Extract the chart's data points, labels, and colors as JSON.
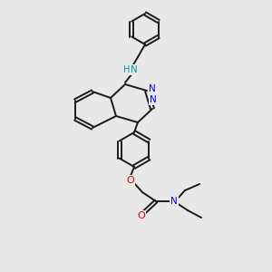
{
  "bg_color": "#e8e8e8",
  "bond_color": "#1a1a1a",
  "n_color": "#0000ee",
  "o_color": "#dd0000",
  "nh_color": "#009999",
  "lw": 1.4,
  "figsize": [
    3.0,
    3.0
  ],
  "dpi": 100,
  "xlim": [
    0,
    300
  ],
  "ylim": [
    0,
    300
  ]
}
